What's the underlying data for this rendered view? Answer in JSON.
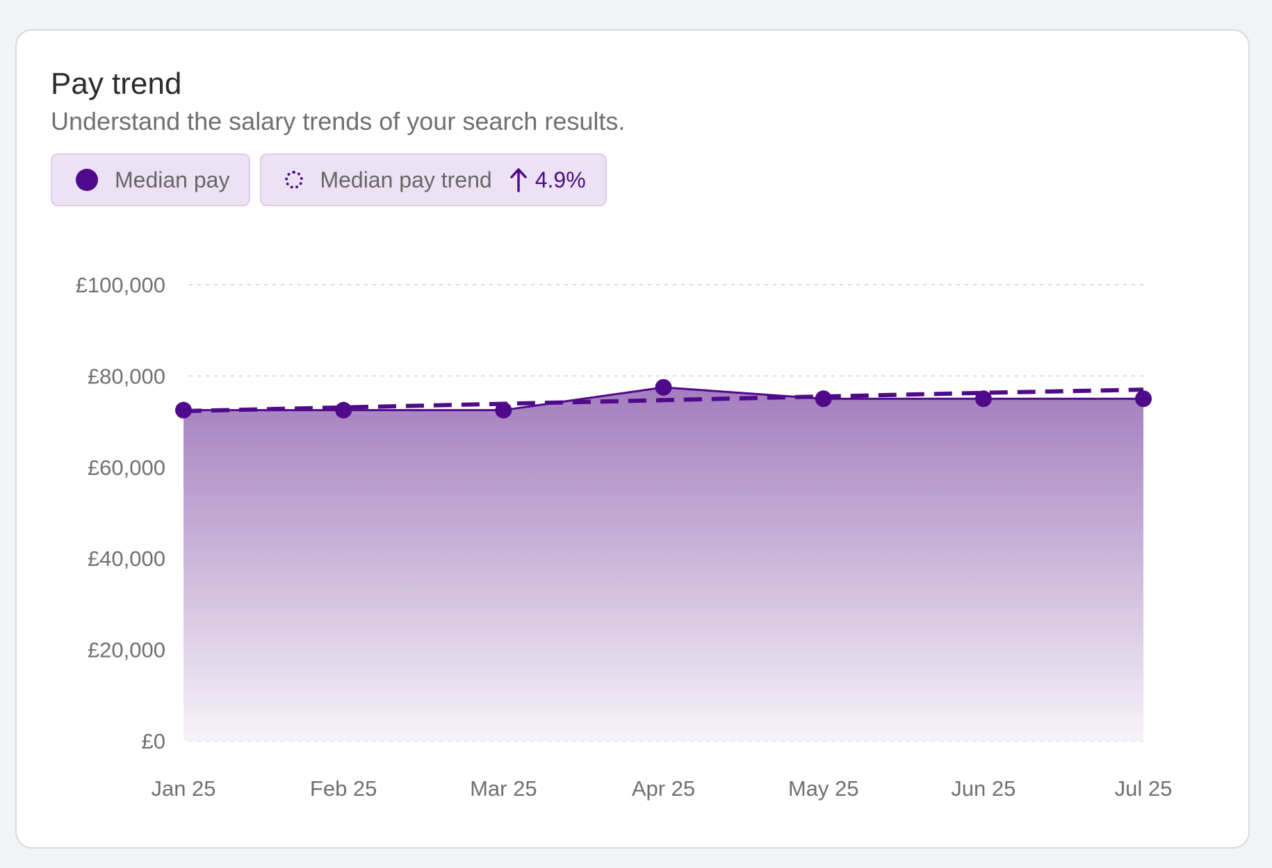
{
  "card": {
    "title": "Pay trend",
    "subtitle": "Understand the salary trends of your search results."
  },
  "legend": {
    "median_pay_label": "Median pay",
    "trend_label": "Median pay trend",
    "trend_change": "4.9%",
    "trend_icon": "arrow-up-icon"
  },
  "colors": {
    "accent": "#4e0a8a",
    "area_top": "#a47dbd",
    "area_bottom": "#f6f3f9",
    "grid": "#dcdcdc",
    "chip_bg": "#ece2f4"
  },
  "chart_data": {
    "type": "area",
    "categories": [
      "Jan 25",
      "Feb 25",
      "Mar 25",
      "Apr 25",
      "May 25",
      "Jun 25",
      "Jul 25"
    ],
    "series": [
      {
        "name": "Median pay",
        "values": [
          72500,
          72500,
          72500,
          77500,
          75000,
          75000,
          75000
        ]
      },
      {
        "name": "Median pay trend",
        "values": [
          72300,
          73100,
          73900,
          74700,
          75500,
          76300,
          77000
        ]
      }
    ],
    "yticks": [
      "£0",
      "£20,000",
      "£40,000",
      "£60,000",
      "£80,000",
      "£100,000"
    ],
    "ylim": [
      0,
      100000
    ],
    "grid": true,
    "legend_position": "top-left"
  }
}
